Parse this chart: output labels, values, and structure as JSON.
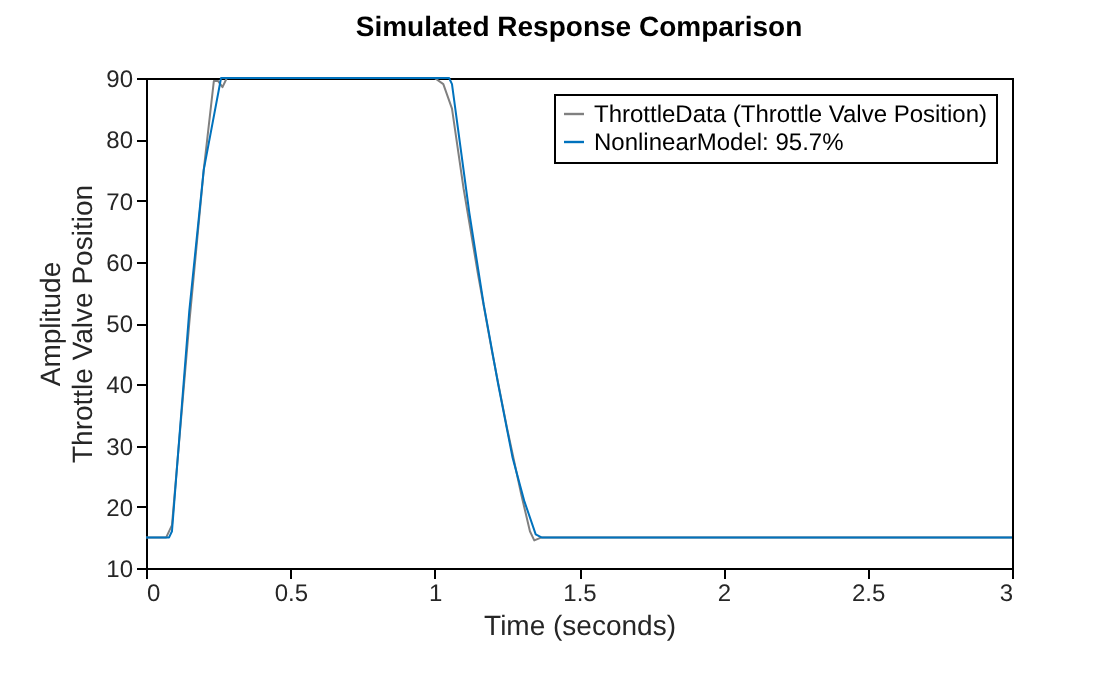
{
  "chart_data": {
    "type": "line",
    "title": "Simulated Response Comparison",
    "xlabel": "Time (seconds)",
    "ylabel": [
      "Amplitude",
      "Throttle Valve Position"
    ],
    "xlim": [
      0,
      3
    ],
    "xticks": [
      0,
      0.5,
      1,
      1.5,
      2,
      2.5,
      3
    ],
    "ylim": [
      10,
      90
    ],
    "yticks": [
      10,
      20,
      30,
      40,
      50,
      60,
      70,
      80,
      90
    ],
    "grid": false,
    "legend": "top right",
    "marker": "none",
    "line_style": "solid",
    "series": [
      {
        "name": "ThrottleData (Throttle Valve Position)",
        "color": "#808080",
        "x": [
          0,
          0.07,
          0.09,
          0.15,
          0.2,
          0.235,
          0.25,
          0.265,
          0.28,
          1.0,
          1.03,
          1.06,
          1.1,
          1.15,
          1.2,
          1.25,
          1.3,
          1.33,
          1.345,
          1.36,
          1.37,
          3
        ],
        "values": [
          15,
          15,
          17,
          50,
          75,
          89.5,
          89.5,
          88.5,
          90,
          90,
          89,
          85,
          72,
          58,
          45,
          33,
          22,
          16,
          14.5,
          14.8,
          15,
          15
        ]
      },
      {
        "name": "NonlinearModel: 95.7%",
        "color": "#0072bd",
        "x": [
          0,
          0.08,
          0.09,
          0.15,
          0.2,
          0.26,
          1.05,
          1.06,
          1.08,
          1.12,
          1.17,
          1.22,
          1.27,
          1.31,
          1.35,
          1.37,
          3
        ],
        "values": [
          15,
          15,
          16,
          52,
          75,
          90,
          90,
          89,
          82,
          68,
          53,
          40,
          28,
          21,
          15.5,
          15,
          15
        ]
      }
    ]
  }
}
